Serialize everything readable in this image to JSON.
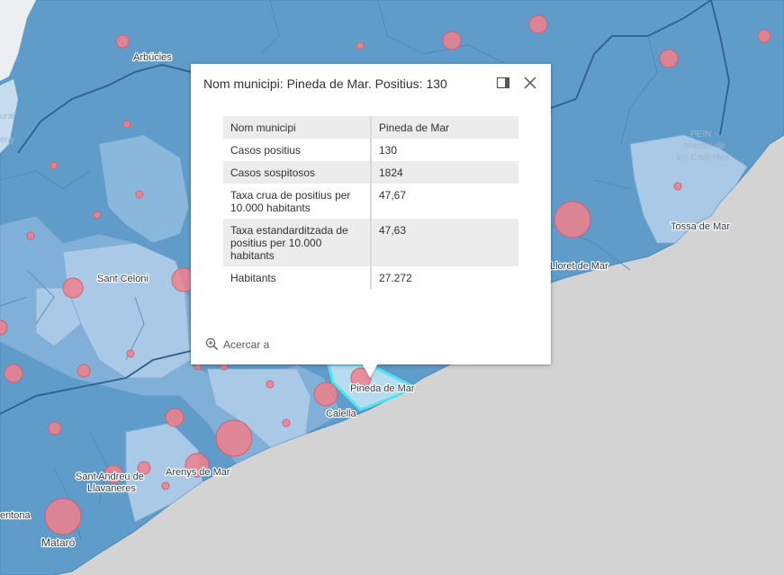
{
  "map": {
    "labels": {
      "arbucies": "Arbúcies",
      "sant_celoni": "Sant Celoni",
      "pineda": "Pineda de Mar",
      "calella": "Calella",
      "tossa": "Tossa de Mar",
      "lloret": "Lloret de Mar",
      "arenys": "Arenys de Mar",
      "sant_andreu_1": "Sant Andreu de",
      "sant_andreu_2": "Llavaneres",
      "mataro": "Mataró",
      "montona": "entona",
      "pein_1": "PEIN -",
      "pein_2": "Massís de",
      "pein_3": "les Cadiretes",
      "rural": "ural",
      "montseny": "eny"
    },
    "colors": {
      "sea": "#d3d3d3",
      "dark_blue": "#5f9cc9",
      "mid_blue": "#8ab7dc",
      "light_blue": "#a9c9e6",
      "circle": "#f0808c",
      "selected_outline": "#4fe3f0"
    }
  },
  "popup": {
    "title": "Nom municipi: Pineda de Mar. Positius: 130",
    "dock_icon": "dock-icon",
    "close_icon": "close-icon",
    "rows": [
      {
        "label": "Nom municipi",
        "value": "Pineda de Mar"
      },
      {
        "label": "Casos positius",
        "value": "130"
      },
      {
        "label": "Casos sospitosos",
        "value": "1824"
      },
      {
        "label": "Taxa crua de positius per 10.000 habitants",
        "value": "47,67"
      },
      {
        "label": "Taxa estandarditzada de positius per 10.000 habitants",
        "value": "47,63"
      },
      {
        "label": "Habitants",
        "value": "27.272"
      }
    ],
    "zoom_label": "Acercar a",
    "zoom_icon": "zoom-in-icon"
  }
}
